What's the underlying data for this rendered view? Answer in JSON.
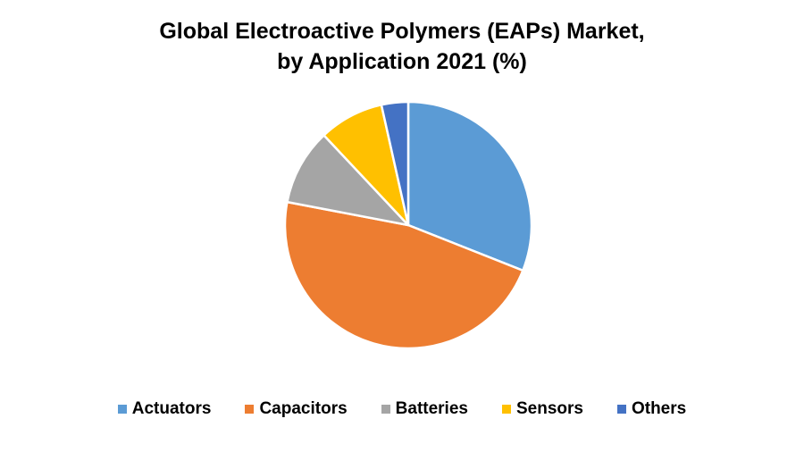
{
  "chart_data": {
    "type": "pie",
    "title_line1": "Global Electroactive Polymers (EAPs) Market,",
    "title_line2": "by Application 2021 (%)",
    "categories": [
      "Actuators",
      "Capacitors",
      "Batteries",
      "Sensors",
      "Others"
    ],
    "values": [
      31,
      47,
      10,
      8.5,
      3.5
    ],
    "colors": [
      "#5B9BD5",
      "#ED7D31",
      "#A5A5A5",
      "#FFC000",
      "#4472C4"
    ],
    "legend_position": "bottom"
  }
}
